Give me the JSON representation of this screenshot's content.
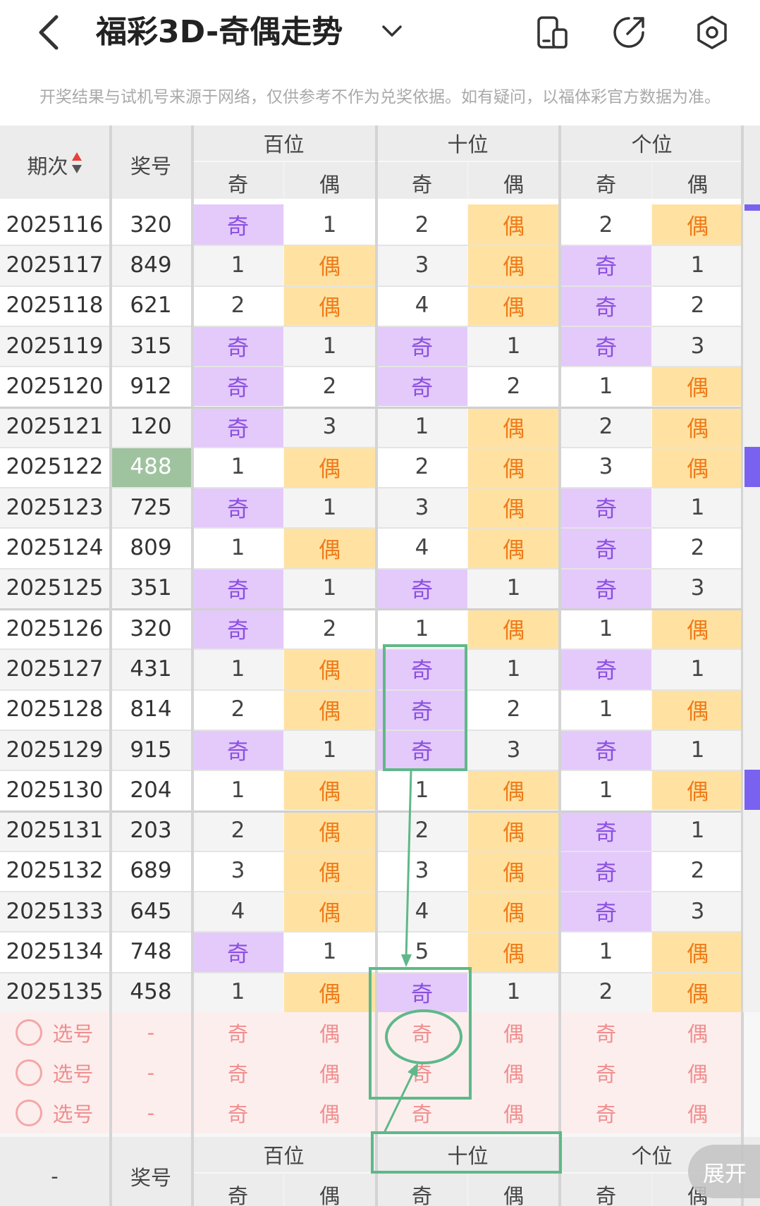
{
  "header": {
    "title": "福彩3D-奇偶走势",
    "disclaimer": "开奖结果与试机号来源于网络，仅供参考不作为兑奖依据。如有疑问，以福体彩官方数据为准。",
    "icons": [
      "back-icon",
      "chevron-down-icon",
      "phone-icon",
      "share-icon",
      "settings-icon"
    ]
  },
  "table_header": {
    "period_label": "期次",
    "number_label": "奖号",
    "groups": [
      "百位",
      "十位",
      "个位"
    ],
    "sub": [
      "奇",
      "偶",
      "奇",
      "偶",
      "奇",
      "偶"
    ]
  },
  "rows": [
    {
      "period": "2025116",
      "number": "320",
      "cells": [
        "奇",
        "1",
        "2",
        "偶",
        "2",
        "偶"
      ]
    },
    {
      "period": "2025117",
      "number": "849",
      "cells": [
        "1",
        "偶",
        "3",
        "偶",
        "奇",
        "1"
      ]
    },
    {
      "period": "2025118",
      "number": "621",
      "cells": [
        "2",
        "偶",
        "4",
        "偶",
        "奇",
        "2"
      ]
    },
    {
      "period": "2025119",
      "number": "315",
      "cells": [
        "奇",
        "1",
        "奇",
        "1",
        "奇",
        "3"
      ]
    },
    {
      "period": "2025120",
      "number": "912",
      "cells": [
        "奇",
        "2",
        "奇",
        "2",
        "1",
        "偶"
      ]
    },
    {
      "period": "2025121",
      "number": "120",
      "cells": [
        "奇",
        "3",
        "1",
        "偶",
        "2",
        "偶"
      ]
    },
    {
      "period": "2025122",
      "number": "488",
      "cells": [
        "1",
        "偶",
        "2",
        "偶",
        "3",
        "偶"
      ]
    },
    {
      "period": "2025123",
      "number": "725",
      "cells": [
        "奇",
        "1",
        "3",
        "偶",
        "奇",
        "1"
      ]
    },
    {
      "period": "2025124",
      "number": "809",
      "cells": [
        "1",
        "偶",
        "4",
        "偶",
        "奇",
        "2"
      ]
    },
    {
      "period": "2025125",
      "number": "351",
      "cells": [
        "奇",
        "1",
        "奇",
        "1",
        "奇",
        "3"
      ]
    },
    {
      "period": "2025126",
      "number": "320",
      "cells": [
        "奇",
        "2",
        "1",
        "偶",
        "1",
        "偶"
      ]
    },
    {
      "period": "2025127",
      "number": "431",
      "cells": [
        "1",
        "偶",
        "奇",
        "1",
        "奇",
        "1"
      ]
    },
    {
      "period": "2025128",
      "number": "814",
      "cells": [
        "2",
        "偶",
        "奇",
        "2",
        "1",
        "偶"
      ]
    },
    {
      "period": "2025129",
      "number": "915",
      "cells": [
        "奇",
        "1",
        "奇",
        "3",
        "奇",
        "1"
      ]
    },
    {
      "period": "2025130",
      "number": "204",
      "cells": [
        "1",
        "偶",
        "1",
        "偶",
        "1",
        "偶"
      ]
    },
    {
      "period": "2025131",
      "number": "203",
      "cells": [
        "2",
        "偶",
        "2",
        "偶",
        "奇",
        "1"
      ]
    },
    {
      "period": "2025132",
      "number": "689",
      "cells": [
        "3",
        "偶",
        "3",
        "偶",
        "奇",
        "2"
      ]
    },
    {
      "period": "2025133",
      "number": "645",
      "cells": [
        "4",
        "偶",
        "4",
        "偶",
        "奇",
        "3"
      ]
    },
    {
      "period": "2025134",
      "number": "748",
      "cells": [
        "奇",
        "1",
        "5",
        "偶",
        "1",
        "偶"
      ]
    },
    {
      "period": "2025135",
      "number": "458",
      "cells": [
        "1",
        "偶",
        "奇",
        "1",
        "2",
        "偶"
      ]
    }
  ],
  "select_rows": [
    {
      "label": "选号",
      "number": "-",
      "cells": [
        "奇",
        "偶",
        "奇",
        "偶",
        "奇",
        "偶"
      ]
    },
    {
      "label": "选号",
      "number": "-",
      "cells": [
        "奇",
        "偶",
        "奇",
        "偶",
        "奇",
        "偶"
      ]
    },
    {
      "label": "选号",
      "number": "-",
      "cells": [
        "奇",
        "偶",
        "奇",
        "偶",
        "奇",
        "偶"
      ]
    }
  ],
  "footer_header": {
    "period_label": "-",
    "number_label": "奖号",
    "groups": [
      "百位",
      "十位",
      "个位"
    ],
    "sub": [
      "奇",
      "偶",
      "奇",
      "偶",
      "奇",
      "偶"
    ]
  },
  "highlighted_number_period": "2025122",
  "expand_label": "展开",
  "colors": {
    "odd_hit_bg": "#e4c9fb",
    "odd_hit_text": "#8a4fe0",
    "even_hit_bg": "#ffe2a1",
    "even_hit_text": "#ef7b1a",
    "annotation": "#5fb889",
    "sort_arrow": "#e8403a",
    "side_marker": "#7a62f0"
  }
}
